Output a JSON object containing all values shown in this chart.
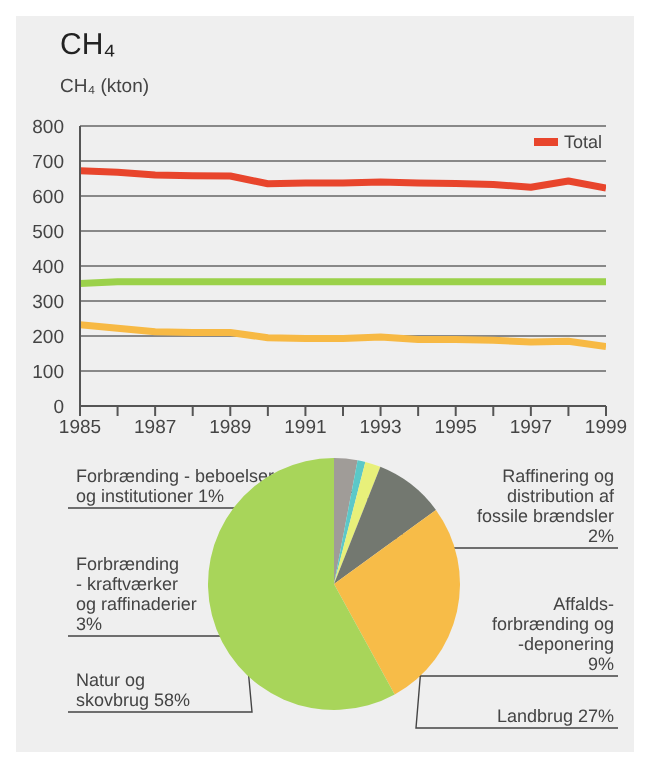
{
  "chart_data": [
    {
      "type": "line",
      "title": "CH₄",
      "ylabel": "CH₄ (kton)",
      "x": [
        1985,
        1986,
        1987,
        1988,
        1989,
        1990,
        1991,
        1992,
        1993,
        1994,
        1995,
        1996,
        1997,
        1998,
        1999
      ],
      "series": [
        {
          "name": "Total",
          "color": "#e8452c",
          "values": [
            672,
            668,
            660,
            658,
            657,
            635,
            637,
            637,
            640,
            637,
            636,
            633,
            625,
            643,
            623
          ]
        },
        {
          "color": "#9bd14a",
          "values": [
            350,
            355,
            355,
            355,
            355,
            355,
            355,
            355,
            355,
            355,
            355,
            355,
            355,
            355,
            355
          ]
        },
        {
          "color": "#f7b944",
          "values": [
            232,
            222,
            212,
            210,
            210,
            195,
            193,
            193,
            197,
            190,
            190,
            188,
            183,
            185,
            170
          ]
        }
      ],
      "xlim": [
        1985,
        1999
      ],
      "xticks": [
        1985,
        {
          "value": 1986,
          "label": null
        },
        1987,
        {
          "value": 1988,
          "label": null
        },
        1989,
        {
          "value": 1990,
          "label": null
        },
        1991,
        {
          "value": 1992,
          "label": null
        },
        1993,
        {
          "value": 1994,
          "label": null
        },
        1995,
        {
          "value": 1996,
          "label": null
        },
        1997,
        {
          "value": 1998,
          "label": null
        },
        1999
      ],
      "ylim": [
        0,
        800
      ],
      "yticks": [
        0,
        100,
        200,
        300,
        400,
        500,
        600,
        700,
        800
      ],
      "grid": "y",
      "legend": "top right",
      "marker": "none"
    },
    {
      "type": "pie",
      "categories": [
        "Forbrænding\n- kraftværker\nog raffinaderier",
        "Forbrænding - beboelser\nog institutioner",
        "Raffinering og\ndistribution af\nfossile brændsler",
        "Affalds-\nforbrænding og\n-deponering",
        "Landbrug",
        "Natur og\nskovbrug"
      ],
      "values": [
        3,
        1,
        2,
        9,
        27,
        58
      ],
      "colors": [
        "#a09c98",
        "#5bc8c8",
        "#e8f07a",
        "#737870",
        "#f7bc48",
        "#a8d55a"
      ],
      "value_labels": [
        "3%",
        "1%",
        "2%",
        "9%",
        "27%",
        "58%"
      ]
    }
  ]
}
